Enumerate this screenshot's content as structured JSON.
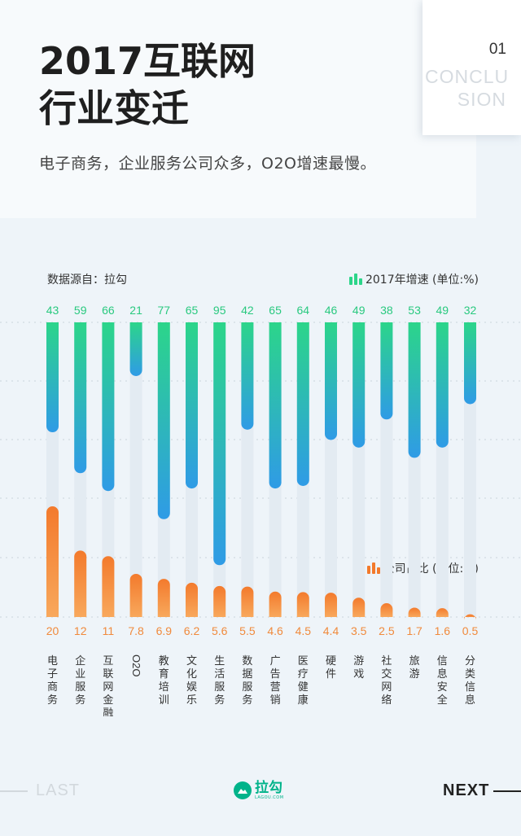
{
  "header": {
    "title_line1": "2017互联网",
    "title_line2": "行业变迁",
    "subtitle": "电子商务，企业服务公司众多，O2O增速最慢。"
  },
  "corner": {
    "number": "01",
    "word_line1": "CONCLU",
    "word_line2": "SION"
  },
  "source_label": "数据源自：拉勾",
  "colors": {
    "growth_top": "#2cd58a",
    "growth_bottom": "#2f9be6",
    "share_top": "#f37a2c",
    "share_bottom": "#f8a85c",
    "growth_label": "#29c97f",
    "share_label": "#f08a3c",
    "track": "#e3ebf2"
  },
  "chart_data": {
    "type": "bar",
    "categories": [
      "电子商务",
      "企业服务",
      "互联网金融",
      "O2O",
      "教育培训",
      "文化娱乐",
      "生活服务",
      "数据服务",
      "广告营销",
      "医疗健康",
      "硬件",
      "游戏",
      "社交网络",
      "旅游",
      "信息安全",
      "分类信息"
    ],
    "series": [
      {
        "name": "2017年增速 (单位:%)",
        "values": [
          43,
          59,
          66,
          21,
          77,
          65,
          95,
          42,
          65,
          64,
          46,
          49,
          38,
          53,
          49,
          32
        ]
      },
      {
        "name": "公司占比 (单位:%)",
        "values": [
          20,
          12,
          11,
          7.8,
          6.9,
          6.2,
          5.6,
          5.5,
          4.6,
          4.5,
          4.4,
          3.5,
          2.5,
          1.7,
          1.6,
          0.5
        ]
      }
    ],
    "value_labels_growth": [
      "43",
      "59",
      "66",
      "21",
      "77",
      "65",
      "95",
      "42",
      "65",
      "64",
      "46",
      "49",
      "38",
      "53",
      "49",
      "32"
    ],
    "value_labels_share": [
      "20",
      "12",
      "11",
      "7.8",
      "6.9",
      "6.2",
      "5.6",
      "5.5",
      "4.6",
      "4.5",
      "4.4",
      "3.5",
      "2.5",
      "1.7",
      "1.6",
      "0.5"
    ],
    "legend": [
      "2017年增速 (单位:%)",
      "公司占比 (单位:%)"
    ],
    "growth_ylim": [
      0,
      100
    ],
    "share_ylim": [
      0,
      25
    ],
    "grid": true,
    "legend_placement": "top-right"
  },
  "nav": {
    "last": "LAST",
    "next": "NEXT",
    "logo_text": "拉勾",
    "logo_sub": "LAGOU.COM"
  }
}
